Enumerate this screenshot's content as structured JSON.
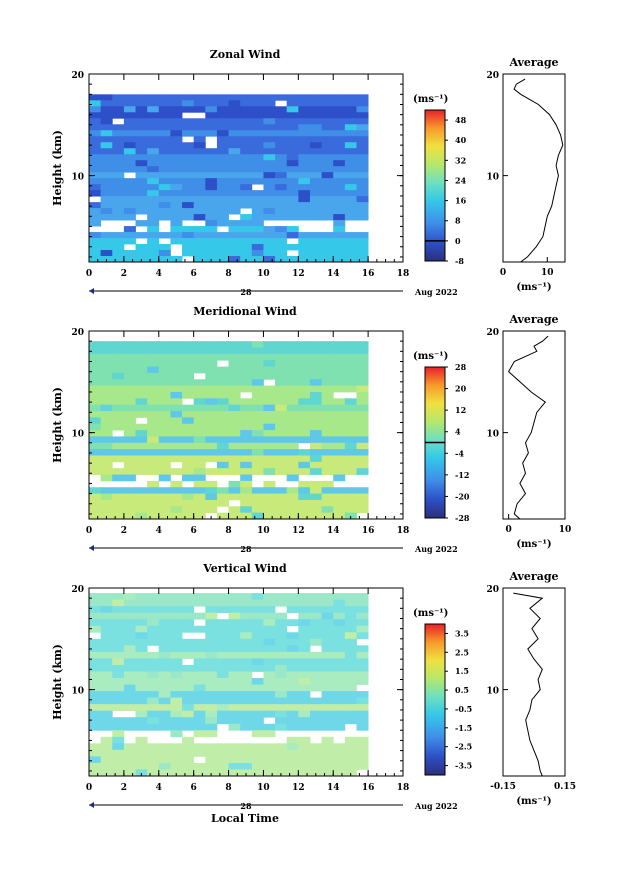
{
  "chart_data": [
    {
      "type": "heatmap",
      "title": "Zonal Wind",
      "ylabel": "Height (km)",
      "xlim": [
        0,
        18
      ],
      "ylim": [
        1.5,
        20
      ],
      "x_ticks": [
        "0",
        "2",
        "4",
        "6",
        "8",
        "10",
        "12",
        "14",
        "16",
        "18"
      ],
      "y_ticks": [
        "10",
        "20"
      ],
      "date_label": "28",
      "month_label": "Aug 2022",
      "data_extent_x": [
        0,
        16
      ],
      "data_extent_y": [
        1.5,
        18
      ],
      "colorbar": {
        "unit_label": "(ms⁻¹)",
        "range": [
          -8,
          52
        ],
        "ticks": [
          "-8",
          "0",
          "8",
          "16",
          "24",
          "32",
          "40",
          "48"
        ],
        "zero_line": 0
      },
      "profile": {
        "title": "Average",
        "xlim": [
          0,
          14
        ],
        "ylim": [
          1.5,
          20
        ],
        "x_ticks": [
          "0",
          "10"
        ],
        "y_ticks": [
          "10",
          "20"
        ],
        "xlabel": "(ms⁻¹)",
        "heights": [
          1.5,
          2,
          3,
          4,
          5,
          6,
          7,
          8,
          9,
          10,
          11,
          12,
          13,
          14,
          15,
          16,
          17,
          17.5,
          18,
          18.5,
          19,
          19.5
        ],
        "values": [
          4,
          5.5,
          7.5,
          9,
          9.5,
          10,
          11,
          11.5,
          12,
          12.5,
          12,
          12.5,
          13.5,
          13,
          12,
          10.5,
          8,
          6,
          4,
          2.5,
          3,
          5
        ]
      }
    },
    {
      "type": "heatmap",
      "title": "Meridional Wind",
      "ylabel": "Height (km)",
      "xlim": [
        0,
        18
      ],
      "ylim": [
        1.5,
        20
      ],
      "x_ticks": [
        "0",
        "2",
        "4",
        "6",
        "8",
        "10",
        "12",
        "14",
        "16",
        "18"
      ],
      "y_ticks": [
        "10",
        "20"
      ],
      "date_label": "28",
      "month_label": "Aug 2022",
      "data_extent_x": [
        0,
        16
      ],
      "data_extent_y": [
        1.5,
        19
      ],
      "colorbar": {
        "unit_label": "(ms⁻¹)",
        "range": [
          -28,
          28
        ],
        "ticks": [
          "-28",
          "-20",
          "-12",
          "-4",
          "4",
          "12",
          "20",
          "28"
        ],
        "zero_line": 0
      },
      "profile": {
        "title": "Average",
        "xlim": [
          -1,
          10
        ],
        "ylim": [
          1.5,
          20
        ],
        "x_ticks": [
          "0",
          "10"
        ],
        "y_ticks": [
          "10",
          "20"
        ],
        "xlabel": "(ms⁻¹)",
        "heights": [
          1.5,
          2,
          3,
          4,
          5,
          6,
          7,
          8,
          9,
          10,
          11,
          12,
          13,
          14,
          15,
          16,
          17,
          17.5,
          18,
          18.5,
          19,
          19.5
        ],
        "values": [
          2,
          1,
          1.5,
          3,
          2,
          3,
          2.5,
          3.5,
          3,
          4,
          4.5,
          5,
          6.5,
          4,
          2,
          0,
          1,
          3,
          5,
          4.5,
          6,
          7
        ]
      }
    },
    {
      "type": "heatmap",
      "title": "Vertical Wind",
      "ylabel": "Height (km)",
      "xlabel": "Local Time",
      "xlim": [
        0,
        18
      ],
      "ylim": [
        1.5,
        20
      ],
      "x_ticks": [
        "0",
        "2",
        "4",
        "6",
        "8",
        "10",
        "12",
        "14",
        "16",
        "18"
      ],
      "y_ticks": [
        "10",
        "20"
      ],
      "date_label": "28",
      "month_label": "Aug 2022",
      "data_extent_x": [
        0,
        16
      ],
      "data_extent_y": [
        1.5,
        19.5
      ],
      "colorbar": {
        "unit_label": "(ms⁻¹)",
        "range": [
          -4,
          4
        ],
        "ticks": [
          "-3.5",
          "-2.5",
          "-1.5",
          "-0.5",
          "0.5",
          "1.5",
          "2.5",
          "3.5"
        ]
      },
      "profile": {
        "title": "Average",
        "xlim": [
          -0.15,
          0.15
        ],
        "ylim": [
          1.5,
          20
        ],
        "x_ticks": [
          "-0.15",
          "0.15"
        ],
        "y_ticks": [
          "10",
          "20"
        ],
        "xlabel": "(ms⁻¹)",
        "heights": [
          1.5,
          2,
          3,
          4,
          5,
          6,
          7,
          8,
          9,
          10,
          11,
          12,
          13,
          14,
          15,
          16,
          17,
          18,
          19,
          19.5
        ],
        "values": [
          0.04,
          0.03,
          0.02,
          0.0,
          -0.02,
          -0.03,
          -0.04,
          -0.02,
          -0.01,
          0.03,
          0.02,
          0.04,
          0.0,
          -0.03,
          0.02,
          -0.01,
          0.03,
          -0.02,
          0.04,
          -0.1
        ]
      }
    }
  ]
}
